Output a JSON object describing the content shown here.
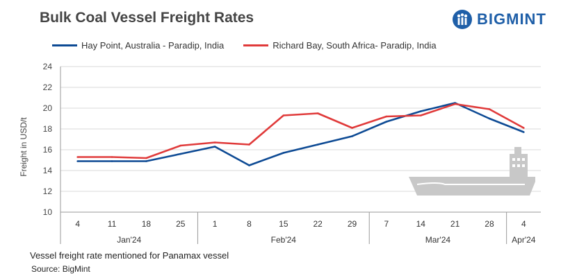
{
  "title": "Bulk Coal Vessel Freight Rates",
  "brand": {
    "name": "BIGMINT",
    "color": "#1f5fa8"
  },
  "footnote": "Vessel freight rate mentioned for Panamax  vessel",
  "source": "Source:  BigMint",
  "ship_icon": "cargo-ship-icon",
  "chart_data": {
    "type": "line",
    "ylabel": "Freight  in USD/t",
    "ylim": [
      10,
      24
    ],
    "yticks": [
      10,
      12,
      14,
      16,
      18,
      20,
      22,
      24
    ],
    "grid": "horizontal",
    "legend_position": "top",
    "x": [
      "4",
      "11",
      "18",
      "25",
      "1",
      "8",
      "15",
      "22",
      "29",
      "7",
      "14",
      "21",
      "28",
      "4"
    ],
    "month_groups": [
      {
        "label": "Jan'24",
        "count": 4
      },
      {
        "label": "Feb'24",
        "count": 5
      },
      {
        "label": "Mar'24",
        "count": 4
      },
      {
        "label": "Apr'24",
        "count": 1
      }
    ],
    "series": [
      {
        "name": "Hay Point, Australia - Paradip, India",
        "color": "#0d4a94",
        "values": [
          14.9,
          14.9,
          14.9,
          15.6,
          16.3,
          14.5,
          15.7,
          16.5,
          17.3,
          18.7,
          19.7,
          20.5,
          19.0,
          17.7
        ]
      },
      {
        "name": "Richard Bay, South Africa- Paradip, India",
        "color": "#e03a3a",
        "values": [
          15.3,
          15.3,
          15.2,
          16.4,
          16.7,
          16.5,
          19.3,
          19.5,
          18.1,
          19.2,
          19.3,
          20.4,
          19.9,
          18.1
        ]
      }
    ]
  }
}
